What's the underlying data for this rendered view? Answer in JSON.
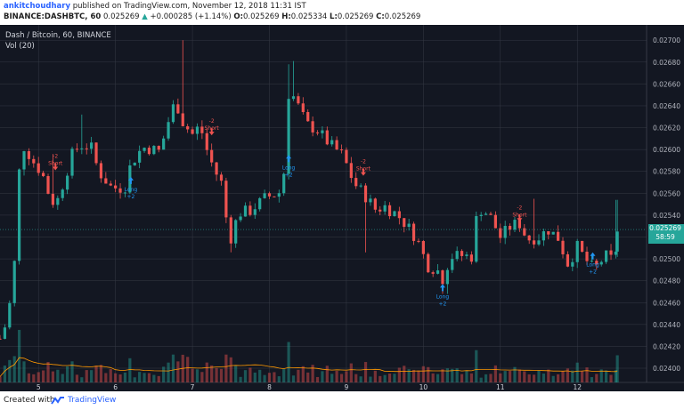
{
  "header": {
    "user": "ankitchoudhary",
    "published": "published on TradingView.com, November 12, 2018 11:31 IST",
    "symbol": "BINANCE:DASHBTC, 60",
    "last": "0.025269",
    "change": "+0.000285 (+1.14%)",
    "o_label": "O:",
    "o": "0.025269",
    "h_label": "H:",
    "h": "0.025334",
    "l_label": "L:",
    "l": "0.025269",
    "c_label": "C:",
    "c": "0.025269"
  },
  "footer": {
    "created_with": "Created with",
    "brand": "TradingView"
  },
  "chart_data": {
    "type": "candlestick",
    "title": "Dash / Bitcoin, 60, BINANCE",
    "indicator": "Vol (20)",
    "price_axis_labels": [
      "0.02700",
      "0.02680",
      "0.02660",
      "0.02640",
      "0.02620",
      "0.02600",
      "0.02580",
      "0.02560",
      "0.02540",
      "0.02520",
      "0.02500",
      "0.02480",
      "0.02460",
      "0.02440",
      "0.02420",
      "0.02400"
    ],
    "ylim": [
      0.02387,
      0.02714
    ],
    "current_price": "0.025269",
    "countdown": "58:59",
    "x_ticks": [
      "5",
      "6",
      "7",
      "8",
      "9",
      "10",
      "11",
      "12"
    ],
    "xlim": [
      4.5,
      12.9
    ],
    "colors": {
      "up": "#26a69a",
      "down": "#ef5350",
      "background": "#131722",
      "grid": "#363a45",
      "volume_ma": "#ff9800",
      "signal_long": "#2196f3",
      "signal_short": "#ef5350"
    },
    "close_path": [
      [
        4.5,
        0.02427
      ],
      [
        4.58,
        0.02441
      ],
      [
        4.66,
        0.02472
      ],
      [
        4.72,
        0.02525
      ],
      [
        4.76,
        0.02598
      ],
      [
        4.82,
        0.02603
      ],
      [
        4.92,
        0.0259
      ],
      [
        5.05,
        0.02578
      ],
      [
        5.12,
        0.02562
      ],
      [
        5.22,
        0.02548
      ],
      [
        5.3,
        0.02565
      ],
      [
        5.45,
        0.02598
      ],
      [
        5.55,
        0.02604
      ],
      [
        5.68,
        0.02603
      ],
      [
        5.78,
        0.0258
      ],
      [
        5.95,
        0.02565
      ],
      [
        6.12,
        0.02565
      ],
      [
        6.2,
        0.02587
      ],
      [
        6.35,
        0.02602
      ],
      [
        6.45,
        0.02601
      ],
      [
        6.58,
        0.02598
      ],
      [
        6.66,
        0.0262
      ],
      [
        6.78,
        0.02645
      ],
      [
        6.88,
        0.02624
      ],
      [
        7.0,
        0.02614
      ],
      [
        7.1,
        0.02622
      ],
      [
        7.18,
        0.02601
      ],
      [
        7.28,
        0.02582
      ],
      [
        7.38,
        0.02569
      ],
      [
        7.48,
        0.02515
      ],
      [
        7.6,
        0.02542
      ],
      [
        7.75,
        0.02544
      ],
      [
        7.95,
        0.02556
      ],
      [
        8.18,
        0.02562
      ],
      [
        8.22,
        0.02652
      ],
      [
        8.32,
        0.02648
      ],
      [
        8.48,
        0.02623
      ],
      [
        8.62,
        0.02618
      ],
      [
        8.78,
        0.02605
      ],
      [
        8.95,
        0.02595
      ],
      [
        9.1,
        0.02569
      ],
      [
        9.22,
        0.0256
      ],
      [
        9.38,
        0.02545
      ],
      [
        9.5,
        0.02548
      ],
      [
        9.65,
        0.02541
      ],
      [
        9.78,
        0.02531
      ],
      [
        9.92,
        0.02518
      ],
      [
        10.05,
        0.02494
      ],
      [
        10.18,
        0.0249
      ],
      [
        10.25,
        0.02482
      ],
      [
        10.35,
        0.02502
      ],
      [
        10.5,
        0.02503
      ],
      [
        10.65,
        0.02502
      ],
      [
        10.7,
        0.02547
      ],
      [
        10.85,
        0.02541
      ],
      [
        11.0,
        0.0252
      ],
      [
        11.15,
        0.02531
      ],
      [
        11.25,
        0.02532
      ],
      [
        11.35,
        0.02518
      ],
      [
        11.5,
        0.0252
      ],
      [
        11.62,
        0.02527
      ],
      [
        11.75,
        0.02519
      ],
      [
        11.88,
        0.02495
      ],
      [
        12.0,
        0.02511
      ],
      [
        12.1,
        0.025
      ],
      [
        12.22,
        0.0249
      ],
      [
        12.35,
        0.02502
      ],
      [
        12.42,
        0.02503
      ],
      [
        12.48,
        0.02492
      ],
      [
        12.52,
        0.02525
      ]
    ],
    "spikes": [
      [
        5.55,
        0.02632
      ],
      [
        6.88,
        0.027
      ],
      [
        8.25,
        0.02678
      ],
      [
        8.32,
        0.02681
      ],
      [
        10.28,
        0.02468
      ],
      [
        11.45,
        0.02555
      ],
      [
        12.52,
        0.02554
      ],
      [
        5.2,
        0.02596
      ],
      [
        7.5,
        0.02506
      ],
      [
        9.25,
        0.02506
      ]
    ],
    "signals": [
      {
        "type": "short",
        "x": 5.22,
        "price": 0.02581,
        "label": "Short",
        "qty": "-2"
      },
      {
        "type": "long",
        "x": 6.2,
        "price": 0.02575,
        "label": "Long",
        "qty": "+2"
      },
      {
        "type": "short",
        "x": 7.25,
        "price": 0.02613,
        "label": "Short",
        "qty": "-2"
      },
      {
        "type": "long",
        "x": 8.25,
        "price": 0.02595,
        "label": "Long",
        "qty": "+2"
      },
      {
        "type": "short",
        "x": 9.22,
        "price": 0.02576,
        "label": "Short",
        "qty": "-2"
      },
      {
        "type": "long",
        "x": 10.25,
        "price": 0.02477,
        "label": "Long",
        "qty": "+2"
      },
      {
        "type": "short",
        "x": 11.25,
        "price": 0.02534,
        "label": "Short",
        "qty": "-2"
      },
      {
        "type": "long",
        "x": 12.2,
        "price": 0.02506,
        "label": "Long",
        "qty": "+2"
      }
    ]
  }
}
